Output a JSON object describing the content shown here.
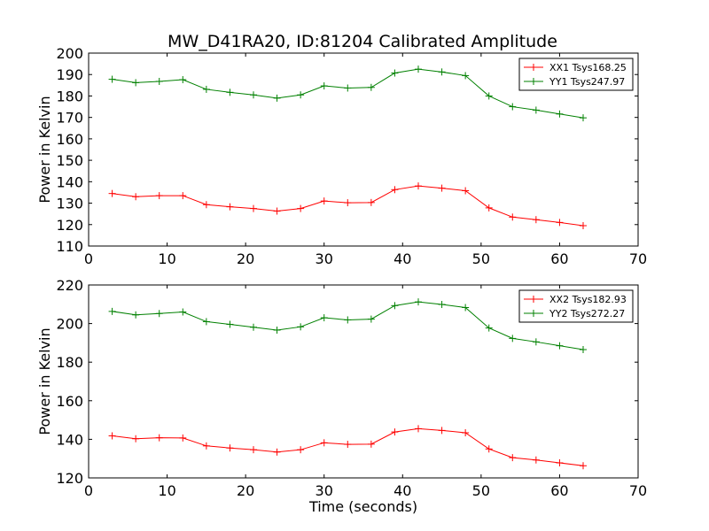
{
  "title": "MW_D41RA20, ID:81204 Calibrated Amplitude",
  "chart_data": [
    {
      "type": "line",
      "title": "MW_D41RA20, ID:81204 Calibrated Amplitude",
      "xlabel": "",
      "ylabel": "Power in Kelvin",
      "xlim": [
        0,
        70
      ],
      "ylim": [
        110,
        200
      ],
      "xticks": [
        0,
        10,
        20,
        30,
        40,
        50,
        60,
        70
      ],
      "yticks": [
        110,
        120,
        130,
        140,
        150,
        160,
        170,
        180,
        190,
        200
      ],
      "grid": false,
      "legend_position": "top-right",
      "x": [
        3,
        6,
        9,
        12,
        15,
        18,
        21,
        24,
        27,
        30,
        33,
        36,
        39,
        42,
        45,
        48,
        51,
        54,
        57,
        60,
        63
      ],
      "series": [
        {
          "name": "XX1 Tsys168.25",
          "color": "#ff0000",
          "marker": "plus",
          "values": [
            134.5,
            133.0,
            133.5,
            133.5,
            129.3,
            128.3,
            127.5,
            126.3,
            127.5,
            131.0,
            130.2,
            130.3,
            136.3,
            138.0,
            137.0,
            135.8,
            127.8,
            123.5,
            122.3,
            121.0,
            119.5
          ]
        },
        {
          "name": "YY1 Tsys247.97",
          "color": "#008000",
          "marker": "plus",
          "values": [
            187.8,
            186.2,
            186.8,
            187.6,
            183.1,
            181.7,
            180.5,
            179.0,
            180.5,
            184.7,
            183.7,
            184.0,
            190.7,
            192.5,
            191.2,
            189.5,
            180.0,
            175.0,
            173.4,
            171.6,
            169.8
          ]
        }
      ]
    },
    {
      "type": "line",
      "title": "",
      "xlabel": "Time (seconds)",
      "ylabel": "Power in Kelvin",
      "xlim": [
        0,
        70
      ],
      "ylim": [
        120,
        220
      ],
      "xticks": [
        0,
        10,
        20,
        30,
        40,
        50,
        60,
        70
      ],
      "yticks": [
        120,
        140,
        160,
        180,
        200,
        220
      ],
      "grid": false,
      "legend_position": "top-right",
      "x": [
        3,
        6,
        9,
        12,
        15,
        18,
        21,
        24,
        27,
        30,
        33,
        36,
        39,
        42,
        45,
        48,
        51,
        54,
        57,
        60,
        63
      ],
      "series": [
        {
          "name": "XX2 Tsys182.93",
          "color": "#ff0000",
          "marker": "plus",
          "values": [
            141.8,
            140.3,
            140.8,
            140.7,
            136.6,
            135.5,
            134.6,
            133.4,
            134.6,
            138.2,
            137.4,
            137.5,
            143.8,
            145.5,
            144.6,
            143.4,
            135.0,
            130.5,
            129.3,
            127.8,
            126.3
          ]
        },
        {
          "name": "YY2 Tsys272.27",
          "color": "#008000",
          "marker": "plus",
          "values": [
            206.3,
            204.5,
            205.2,
            206.0,
            201.0,
            199.6,
            198.1,
            196.6,
            198.3,
            203.0,
            201.9,
            202.3,
            209.3,
            211.2,
            209.9,
            208.3,
            197.7,
            192.3,
            190.5,
            188.5,
            186.5
          ]
        }
      ]
    }
  ]
}
